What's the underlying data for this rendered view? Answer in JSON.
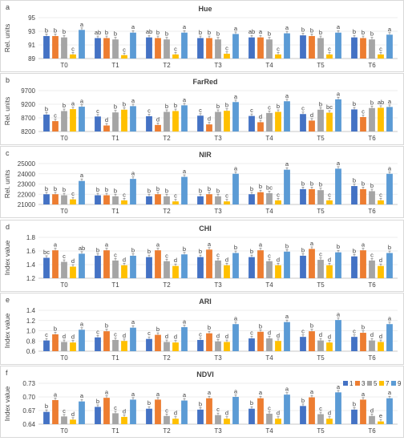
{
  "chart_data": [
    {
      "type": "bar",
      "panel": "a",
      "title": "Hue",
      "ylabel": "Rel. units",
      "ylim": [
        89,
        95
      ],
      "yticks": [
        89,
        91,
        93,
        95
      ],
      "categories": [
        "T0",
        "T1",
        "T2",
        "T3",
        "T4",
        "T5",
        "T6"
      ],
      "series": [
        {
          "name": "1",
          "color": "#4472C4",
          "values": [
            92.3,
            92.0,
            92.1,
            92.0,
            92.1,
            92.4,
            92.1
          ],
          "labels": [
            "b",
            "ab",
            "ab",
            "b",
            "ab",
            "b",
            "b"
          ]
        },
        {
          "name": "3",
          "color": "#ED7D31",
          "values": [
            92.3,
            92.0,
            92.0,
            92.0,
            92.1,
            92.3,
            92.0
          ],
          "labels": [
            "b",
            "b",
            "b",
            "b",
            "a",
            "b",
            "b"
          ]
        },
        {
          "name": "5",
          "color": "#A5A5A5",
          "values": [
            92.1,
            91.8,
            91.8,
            91.8,
            91.8,
            92.0,
            91.8
          ],
          "labels": [
            "b",
            "b",
            "b",
            "b",
            "b",
            "b",
            "b"
          ]
        },
        {
          "name": "7",
          "color": "#FFC000",
          "values": [
            89.6,
            89.5,
            89.6,
            89.7,
            89.6,
            89.6,
            89.6
          ],
          "labels": [
            "c",
            "c",
            "c",
            "c",
            "c",
            "c",
            "c"
          ]
        },
        {
          "name": "9",
          "color": "#5B9BD5",
          "values": [
            93.2,
            92.8,
            92.8,
            92.6,
            92.7,
            92.8,
            92.5
          ],
          "labels": [
            "a",
            "a",
            "a",
            "a",
            "a",
            "a",
            "a"
          ]
        }
      ]
    },
    {
      "type": "bar",
      "panel": "b",
      "title": "FarRed",
      "ylabel": "Rel. units",
      "ylim": [
        8200,
        9700
      ],
      "yticks": [
        8200,
        8700,
        9200,
        9700
      ],
      "categories": [
        "T0",
        "T1",
        "T2",
        "T3",
        "T4",
        "T5",
        "T6"
      ],
      "series": [
        {
          "name": "1",
          "color": "#4472C4",
          "values": [
            8820,
            8750,
            8760,
            8780,
            8770,
            8840,
            9010
          ],
          "labels": [
            "b",
            "c",
            "c",
            "c",
            "c",
            "c",
            "b"
          ]
        },
        {
          "name": "3",
          "color": "#ED7D31",
          "values": [
            8580,
            8420,
            8440,
            8460,
            8540,
            8600,
            8730
          ],
          "labels": [
            "c",
            "d",
            "d",
            "d",
            "d",
            "d",
            "c"
          ]
        },
        {
          "name": "5",
          "color": "#A5A5A5",
          "values": [
            8950,
            8900,
            8920,
            8920,
            8880,
            9000,
            9060
          ],
          "labels": [
            "b",
            "b",
            "b",
            "b",
            "c",
            "b",
            "b"
          ]
        },
        {
          "name": "7",
          "color": "#FFC000",
          "values": [
            9020,
            9000,
            8950,
            8960,
            8920,
            8890,
            9070
          ],
          "labels": [
            "a",
            "b",
            "b",
            "b",
            "b",
            "bc",
            "ab"
          ]
        },
        {
          "name": "9",
          "color": "#5B9BD5",
          "values": [
            9110,
            9130,
            9160,
            9280,
            9310,
            9380,
            9100
          ],
          "labels": [
            "a",
            "a",
            "a",
            "a",
            "a",
            "a",
            "a"
          ]
        }
      ]
    },
    {
      "type": "bar",
      "panel": "c",
      "title": "NIR",
      "ylabel": "Rel. units",
      "ylim": [
        21000,
        25000
      ],
      "yticks": [
        21000,
        22000,
        23000,
        24000,
        25000
      ],
      "categories": [
        "T0",
        "T1",
        "T2",
        "T3",
        "T4",
        "T5",
        "T6"
      ],
      "series": [
        {
          "name": "1",
          "color": "#4472C4",
          "values": [
            22000,
            21900,
            21800,
            21800,
            22000,
            22500,
            22800
          ],
          "labels": [
            "b",
            "b",
            "b",
            "b",
            "b",
            "b",
            "b"
          ]
        },
        {
          "name": "3",
          "color": "#ED7D31",
          "values": [
            22000,
            21900,
            22000,
            22000,
            22200,
            22500,
            22500
          ],
          "labels": [
            "b",
            "b",
            "b",
            "b",
            "b",
            "b",
            "b"
          ]
        },
        {
          "name": "5",
          "color": "#A5A5A5",
          "values": [
            21900,
            21800,
            21800,
            21800,
            22100,
            22400,
            22300
          ],
          "labels": [
            "b",
            "b",
            "b",
            "b",
            "bc",
            "b",
            "b"
          ]
        },
        {
          "name": "7",
          "color": "#FFC000",
          "values": [
            21500,
            21400,
            21300,
            21300,
            21400,
            21400,
            21400
          ],
          "labels": [
            "c",
            "c",
            "c",
            "c",
            "c",
            "c",
            "c"
          ]
        },
        {
          "name": "9",
          "color": "#5B9BD5",
          "values": [
            23300,
            23500,
            23700,
            24000,
            24400,
            24500,
            24000
          ],
          "labels": [
            "a",
            "a",
            "a",
            "a",
            "a",
            "a",
            "a"
          ]
        }
      ]
    },
    {
      "type": "bar",
      "panel": "d",
      "title": "CHI",
      "ylabel": "Index value",
      "ylim": [
        1.2,
        1.8
      ],
      "yticks": [
        1.2,
        1.4,
        1.6,
        1.8
      ],
      "categories": [
        "T0",
        "T1",
        "T2",
        "T3",
        "T4",
        "T5",
        "T6"
      ],
      "series": [
        {
          "name": "1",
          "color": "#4472C4",
          "values": [
            1.5,
            1.53,
            1.51,
            1.51,
            1.51,
            1.53,
            1.52
          ],
          "labels": [
            "bc",
            "b",
            "b",
            "b",
            "b",
            "b",
            "b"
          ]
        },
        {
          "name": "3",
          "color": "#ED7D31",
          "values": [
            1.61,
            1.61,
            1.61,
            1.62,
            1.61,
            1.63,
            1.61
          ],
          "labels": [
            "a",
            "a",
            "a",
            "a",
            "a",
            "a",
            "a"
          ]
        },
        {
          "name": "5",
          "color": "#A5A5A5",
          "values": [
            1.44,
            1.46,
            1.45,
            1.46,
            1.45,
            1.47,
            1.46
          ],
          "labels": [
            "c",
            "c",
            "c",
            "c",
            "c",
            "c",
            "c"
          ]
        },
        {
          "name": "7",
          "color": "#FFC000",
          "values": [
            1.37,
            1.39,
            1.38,
            1.39,
            1.39,
            1.39,
            1.38
          ],
          "labels": [
            "d",
            "d",
            "d",
            "d",
            "d",
            "d",
            "d"
          ]
        },
        {
          "name": "9",
          "color": "#5B9BD5",
          "values": [
            1.56,
            1.53,
            1.55,
            1.57,
            1.59,
            1.58,
            1.57
          ],
          "labels": [
            "ab",
            "b",
            "b",
            "b",
            "b",
            "b",
            "b"
          ]
        }
      ]
    },
    {
      "type": "bar",
      "panel": "e",
      "title": "ARI",
      "ylabel": "Index value",
      "ylim": [
        0.6,
        1.4
      ],
      "yticks": [
        0.6,
        0.8,
        1.0,
        1.2,
        1.4
      ],
      "categories": [
        "T0",
        "T1",
        "T2",
        "T3",
        "T4",
        "T5",
        "T6"
      ],
      "series": [
        {
          "name": "1",
          "color": "#4472C4",
          "values": [
            0.81,
            0.87,
            0.84,
            0.82,
            0.85,
            0.88,
            0.88
          ],
          "labels": [
            "c",
            "c",
            "c",
            "c",
            "c",
            "c",
            "c"
          ]
        },
        {
          "name": "3",
          "color": "#ED7D31",
          "values": [
            0.93,
            0.99,
            0.92,
            0.95,
            0.98,
            0.99,
            0.96
          ],
          "labels": [
            "b",
            "b",
            "b",
            "b",
            "b",
            "b",
            "b"
          ]
        },
        {
          "name": "5",
          "color": "#A5A5A5",
          "values": [
            0.78,
            0.82,
            0.78,
            0.79,
            0.85,
            0.81,
            0.81
          ],
          "labels": [
            "d",
            "c",
            "d",
            "d",
            "d",
            "d",
            "d"
          ]
        },
        {
          "name": "7",
          "color": "#FFC000",
          "values": [
            0.77,
            0.8,
            0.77,
            0.78,
            0.8,
            0.77,
            0.78
          ],
          "labels": [
            "d",
            "d",
            "d",
            "d",
            "d",
            "d",
            "d"
          ]
        },
        {
          "name": "9",
          "color": "#5B9BD5",
          "values": [
            1.02,
            1.06,
            1.07,
            1.13,
            1.17,
            1.21,
            1.13
          ],
          "labels": [
            "a",
            "a",
            "a",
            "a",
            "a",
            "a",
            "a"
          ]
        }
      ]
    },
    {
      "type": "bar",
      "panel": "f",
      "title": "NDVI",
      "ylabel": "Index value",
      "ylim": [
        0.64,
        0.73
      ],
      "yticks": [
        0.64,
        0.67,
        0.7,
        0.73
      ],
      "categories": [
        "T0",
        "T1",
        "T2",
        "T3",
        "T4",
        "T5",
        "T6"
      ],
      "series": [
        {
          "name": "1",
          "color": "#4472C4",
          "values": [
            0.667,
            0.678,
            0.674,
            0.672,
            0.674,
            0.68,
            0.672
          ],
          "labels": [
            "b",
            "b",
            "b",
            "b",
            "b",
            "b",
            "b"
          ]
        },
        {
          "name": "3",
          "color": "#ED7D31",
          "values": [
            0.693,
            0.698,
            0.694,
            0.697,
            0.697,
            0.699,
            0.694
          ],
          "labels": [
            "a",
            "a",
            "a",
            "a",
            "a",
            "a",
            "a"
          ]
        },
        {
          "name": "5",
          "color": "#A5A5A5",
          "values": [
            0.657,
            0.664,
            0.658,
            0.66,
            0.663,
            0.662,
            0.658
          ],
          "labels": [
            "c",
            "c",
            "c",
            "c",
            "c",
            "c",
            "d"
          ]
        },
        {
          "name": "7",
          "color": "#FFC000",
          "values": [
            0.65,
            0.656,
            0.652,
            0.652,
            0.652,
            0.652,
            0.646
          ],
          "labels": [
            "d",
            "d",
            "d",
            "d",
            "d",
            "d",
            "e"
          ]
        },
        {
          "name": "9",
          "color": "#5B9BD5",
          "values": [
            0.69,
            0.694,
            0.692,
            0.7,
            0.705,
            0.71,
            0.697
          ],
          "labels": [
            "a",
            "a",
            "a",
            "a",
            "a",
            "a",
            "a"
          ]
        }
      ]
    }
  ]
}
